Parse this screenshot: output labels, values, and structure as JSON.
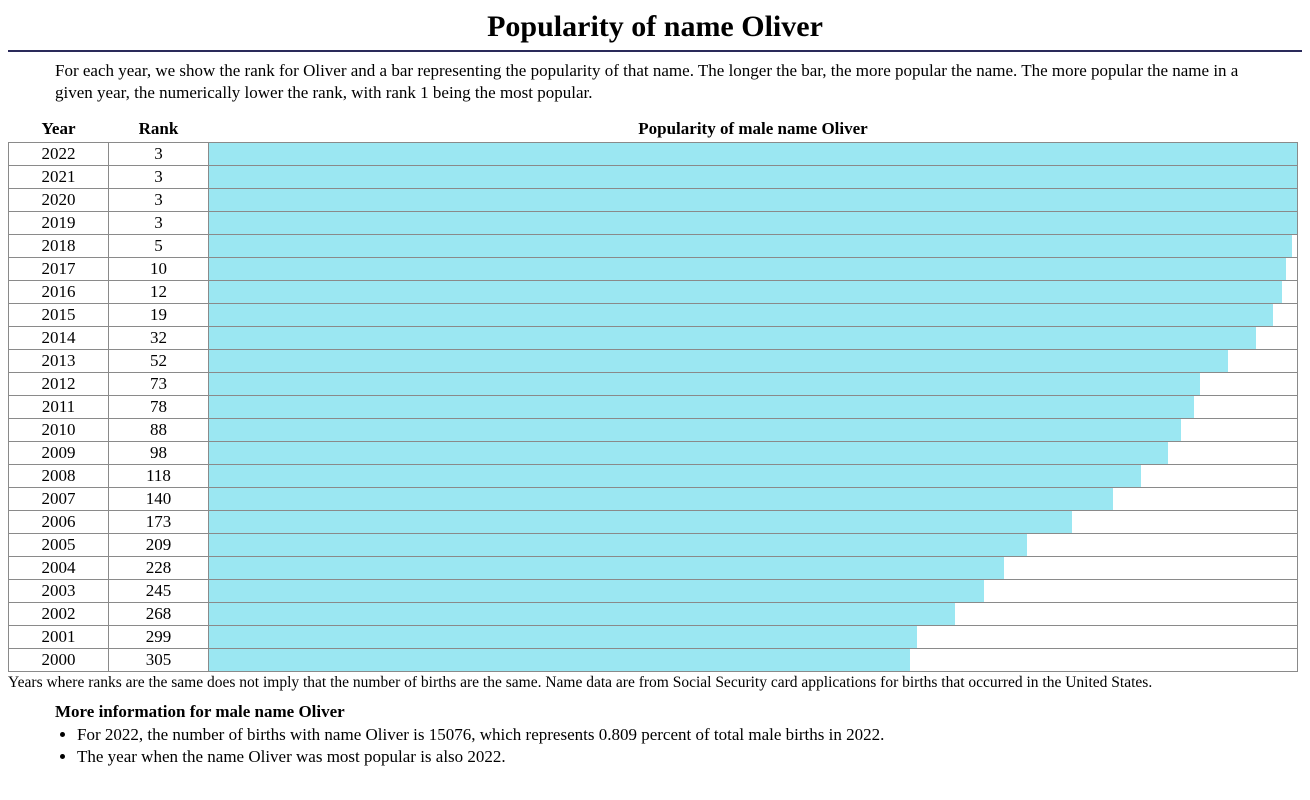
{
  "title": "Popularity of name Oliver",
  "intro": "For each year, we show the rank for Oliver and a bar representing the popularity of that name. The longer the bar, the more popular the name. The more popular the name in a given year, the numerically lower the rank, with rank 1 being the most popular.",
  "table": {
    "headers": {
      "year": "Year",
      "rank": "Rank",
      "popularity": "Popularity of male name Oliver"
    },
    "bar_color": "#9be7f2",
    "border_color": "#8a8a8a",
    "background_color": "#ffffff",
    "max_bar_percent": 100.0,
    "rows": [
      {
        "year": "2022",
        "rank": "3",
        "bar_percent": 100.0
      },
      {
        "year": "2021",
        "rank": "3",
        "bar_percent": 100.0
      },
      {
        "year": "2020",
        "rank": "3",
        "bar_percent": 100.0
      },
      {
        "year": "2019",
        "rank": "3",
        "bar_percent": 100.0
      },
      {
        "year": "2018",
        "rank": "5",
        "bar_percent": 99.5
      },
      {
        "year": "2017",
        "rank": "10",
        "bar_percent": 99.0
      },
      {
        "year": "2016",
        "rank": "12",
        "bar_percent": 98.6
      },
      {
        "year": "2015",
        "rank": "19",
        "bar_percent": 97.8
      },
      {
        "year": "2014",
        "rank": "32",
        "bar_percent": 96.2
      },
      {
        "year": "2013",
        "rank": "52",
        "bar_percent": 93.7
      },
      {
        "year": "2012",
        "rank": "73",
        "bar_percent": 91.1
      },
      {
        "year": "2011",
        "rank": "78",
        "bar_percent": 90.5
      },
      {
        "year": "2010",
        "rank": "88",
        "bar_percent": 89.3
      },
      {
        "year": "2009",
        "rank": "98",
        "bar_percent": 88.1
      },
      {
        "year": "2008",
        "rank": "118",
        "bar_percent": 85.7
      },
      {
        "year": "2007",
        "rank": "140",
        "bar_percent": 83.1
      },
      {
        "year": "2006",
        "rank": "173",
        "bar_percent": 79.3
      },
      {
        "year": "2005",
        "rank": "209",
        "bar_percent": 75.2
      },
      {
        "year": "2004",
        "rank": "228",
        "bar_percent": 73.1
      },
      {
        "year": "2003",
        "rank": "245",
        "bar_percent": 71.2
      },
      {
        "year": "2002",
        "rank": "268",
        "bar_percent": 68.6
      },
      {
        "year": "2001",
        "rank": "299",
        "bar_percent": 65.1
      },
      {
        "year": "2000",
        "rank": "305",
        "bar_percent": 64.4
      }
    ]
  },
  "footnote": "Years where ranks are the same does not imply that the number of births are the same. Name data are from Social Security card applications for births that occurred in the United States.",
  "more_info": {
    "heading": "More information for male name Oliver",
    "bullets": [
      "For 2022, the number of births with name Oliver is 15076, which represents 0.809 percent of total male births in 2022.",
      "The year when the name Oliver was most popular is also 2022."
    ]
  }
}
